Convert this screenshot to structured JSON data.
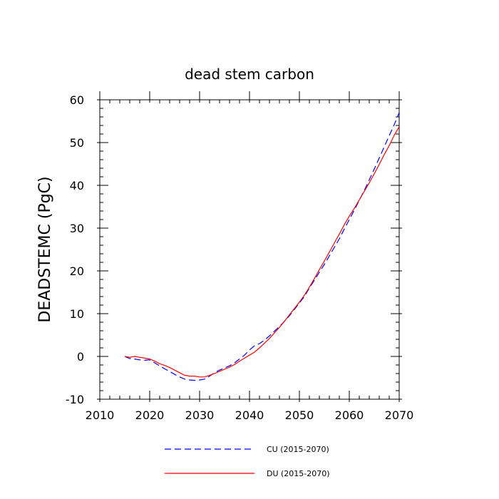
{
  "chart_data": {
    "type": "line",
    "title": "dead stem carbon",
    "xlabel": "",
    "ylabel": "DEADSTEMC  (PgC)",
    "xlim": [
      2010,
      2070
    ],
    "ylim": [
      -10,
      60
    ],
    "xticks": [
      2010,
      2020,
      2030,
      2040,
      2050,
      2060,
      2070
    ],
    "yticks": [
      -10,
      0,
      10,
      20,
      30,
      40,
      50,
      60
    ],
    "x": [
      2015,
      2016,
      2017,
      2018,
      2019,
      2020,
      2021,
      2022,
      2023,
      2024,
      2025,
      2026,
      2027,
      2028,
      2029,
      2030,
      2031,
      2032,
      2033,
      2034,
      2035,
      2036,
      2037,
      2038,
      2039,
      2040,
      2041,
      2042,
      2043,
      2044,
      2045,
      2046,
      2047,
      2048,
      2049,
      2050,
      2051,
      2052,
      2053,
      2054,
      2055,
      2056,
      2057,
      2058,
      2059,
      2060,
      2061,
      2062,
      2063,
      2064,
      2065,
      2066,
      2067,
      2068,
      2069,
      2070
    ],
    "series": [
      {
        "name": "CU (2015-2070)",
        "color": "#0000ff",
        "dash": "dashed",
        "values": [
          0.0,
          -0.5,
          -0.6,
          -0.8,
          -0.9,
          -0.8,
          -1.5,
          -2.2,
          -2.9,
          -3.5,
          -4.2,
          -4.8,
          -5.3,
          -5.5,
          -5.6,
          -5.5,
          -5.3,
          -4.6,
          -3.8,
          -3.2,
          -2.7,
          -2.2,
          -1.5,
          -0.6,
          0.3,
          1.5,
          2.5,
          3.0,
          3.8,
          4.8,
          5.9,
          7.0,
          8.2,
          9.5,
          11.0,
          12.5,
          14.0,
          16.0,
          17.8,
          19.7,
          21.5,
          23.5,
          25.5,
          27.5,
          29.8,
          32.0,
          34.2,
          36.5,
          38.8,
          41.3,
          43.8,
          46.4,
          49.0,
          51.6,
          54.2,
          57.0
        ]
      },
      {
        "name": "DU (2015-2070)",
        "color": "#ff0000",
        "dash": "solid",
        "values": [
          0.0,
          -0.2,
          0.0,
          -0.2,
          -0.4,
          -0.6,
          -1.1,
          -1.7,
          -2.1,
          -2.6,
          -3.2,
          -3.8,
          -4.4,
          -4.6,
          -4.6,
          -4.8,
          -4.8,
          -4.4,
          -4.0,
          -3.5,
          -3.0,
          -2.5,
          -1.9,
          -1.1,
          -0.4,
          0.3,
          1.0,
          2.0,
          3.1,
          4.2,
          5.5,
          6.8,
          8.2,
          9.7,
          11.2,
          12.7,
          14.3,
          16.2,
          18.2,
          20.3,
          22.3,
          24.4,
          26.5,
          28.6,
          30.8,
          32.8,
          34.6,
          36.6,
          38.6,
          40.6,
          42.7,
          44.9,
          47.2,
          49.3,
          51.7,
          53.7
        ]
      }
    ],
    "legend_position": "bottom-center"
  }
}
